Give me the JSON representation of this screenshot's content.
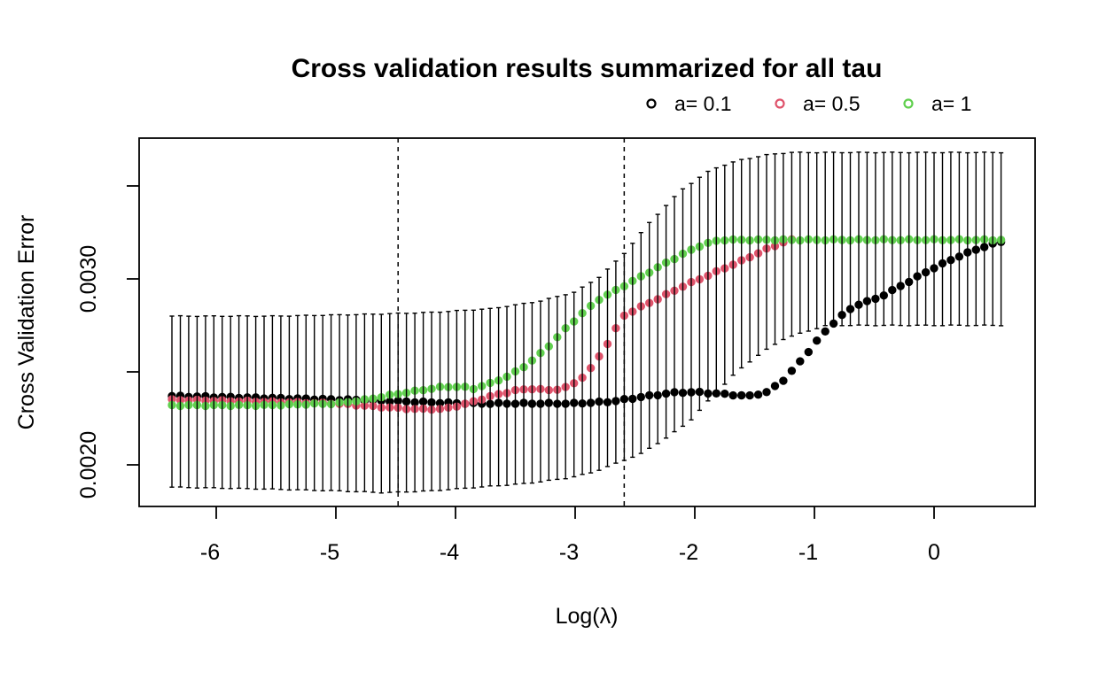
{
  "chart_data": {
    "type": "scatter",
    "title": "Cross validation results summarized for all tau",
    "xlabel": "Log(λ)",
    "ylabel": "Cross Validation Error",
    "background": "#ffffff",
    "foreground": "#000000",
    "x_axis": {
      "ticks": [
        -6,
        -5,
        -4,
        -3,
        -2,
        -1,
        0
      ],
      "tick_labels": [
        "-6",
        "-5",
        "-4",
        "-3",
        "-2",
        "-1",
        "0"
      ],
      "range": [
        -6.64,
        0.84
      ]
    },
    "y_axis": {
      "ticks": [
        0.002,
        0.0025,
        0.003,
        0.0035
      ],
      "labeled_ticks": [
        0.003,
        0.002
      ],
      "tick_labels": [
        "0.0030",
        "0.0020"
      ],
      "range": [
        0.001776,
        0.003757
      ]
    },
    "vlines": {
      "style": "dashed",
      "x": [
        -4.48,
        -2.59
      ]
    },
    "points": {
      "n": 100,
      "x_start": -6.37,
      "x_step": 0.07
    },
    "series": [
      {
        "label": "a= 0.1",
        "color": "#000000",
        "x_end": 0.56,
        "keypoints": [
          [
            -6.37,
            0.00237
          ],
          [
            -5.6,
            0.00236
          ],
          [
            -4.9,
            0.00235
          ],
          [
            -4.4,
            0.00234
          ],
          [
            -3.9,
            0.00233
          ],
          [
            -3.4,
            0.00233
          ],
          [
            -3.0,
            0.00233
          ],
          [
            -2.7,
            0.00234
          ],
          [
            -2.4,
            0.00237
          ],
          [
            -2.15,
            0.00239
          ],
          [
            -1.95,
            0.00239
          ],
          [
            -1.75,
            0.00238
          ],
          [
            -1.55,
            0.00237
          ],
          [
            -1.4,
            0.00239
          ],
          [
            -1.25,
            0.00246
          ],
          [
            -1.1,
            0.00257
          ],
          [
            -0.95,
            0.00269
          ],
          [
            -0.8,
            0.00279
          ],
          [
            -0.65,
            0.00286
          ],
          [
            -0.5,
            0.00289
          ],
          [
            -0.4,
            0.00292
          ],
          [
            -0.2,
            0.00299
          ],
          [
            0.0,
            0.00306
          ],
          [
            0.2,
            0.00312
          ],
          [
            0.4,
            0.00317
          ],
          [
            0.56,
            0.0032
          ]
        ]
      },
      {
        "label": "a= 0.5",
        "color": "#DF536B",
        "x_end": -1.19,
        "keypoints": [
          [
            -6.37,
            0.00235
          ],
          [
            -5.6,
            0.00234
          ],
          [
            -5.0,
            0.00233
          ],
          [
            -4.6,
            0.00231
          ],
          [
            -4.35,
            0.0023
          ],
          [
            -4.1,
            0.0023
          ],
          [
            -3.9,
            0.00233
          ],
          [
            -3.7,
            0.00237
          ],
          [
            -3.5,
            0.0024
          ],
          [
            -3.35,
            0.00241
          ],
          [
            -3.2,
            0.0024
          ],
          [
            -3.05,
            0.00242
          ],
          [
            -2.9,
            0.00249
          ],
          [
            -2.75,
            0.00263
          ],
          [
            -2.6,
            0.0028
          ],
          [
            -2.45,
            0.00285
          ],
          [
            -2.35,
            0.00288
          ],
          [
            -2.1,
            0.00296
          ],
          [
            -1.85,
            0.00303
          ],
          [
            -1.6,
            0.0031
          ],
          [
            -1.4,
            0.00316
          ],
          [
            -1.25,
            0.0032
          ],
          [
            -1.19,
            0.00321
          ]
        ]
      },
      {
        "label": "a= 1",
        "color": "#61D04F",
        "x_end": 0.56,
        "keypoints": [
          [
            -6.37,
            0.00232
          ],
          [
            -5.6,
            0.00232
          ],
          [
            -5.0,
            0.00233
          ],
          [
            -4.75,
            0.00235
          ],
          [
            -4.5,
            0.00238
          ],
          [
            -4.3,
            0.0024
          ],
          [
            -4.1,
            0.00242
          ],
          [
            -3.95,
            0.00242
          ],
          [
            -3.85,
            0.00241
          ],
          [
            -3.7,
            0.00244
          ],
          [
            -3.55,
            0.00248
          ],
          [
            -3.4,
            0.00254
          ],
          [
            -3.25,
            0.00262
          ],
          [
            -3.1,
            0.00272
          ],
          [
            -2.95,
            0.00281
          ],
          [
            -2.8,
            0.00289
          ],
          [
            -2.6,
            0.00296
          ],
          [
            -2.4,
            0.00303
          ],
          [
            -2.2,
            0.0031
          ],
          [
            -2.05,
            0.00315
          ],
          [
            -1.95,
            0.00318
          ],
          [
            -1.85,
            0.0032
          ],
          [
            -1.78,
            0.00321
          ],
          [
            0.56,
            0.00321
          ]
        ]
      }
    ],
    "error_bars": {
      "color": "#000000",
      "attached_to": "all points",
      "upper_keypoints": [
        [
          -6.37,
          0.0028
        ],
        [
          -5.5,
          0.0028
        ],
        [
          -4.7,
          0.00281
        ],
        [
          -4.2,
          0.00282
        ],
        [
          -3.7,
          0.00284
        ],
        [
          -3.3,
          0.00288
        ],
        [
          -3.0,
          0.00293
        ],
        [
          -2.8,
          0.00301
        ],
        [
          -2.6,
          0.00313
        ],
        [
          -2.37,
          0.00331
        ],
        [
          -2.11,
          0.00348
        ],
        [
          -1.86,
          0.00359
        ],
        [
          -1.62,
          0.00364
        ],
        [
          -1.37,
          0.00367
        ],
        [
          -1.2,
          0.00368
        ],
        [
          0.56,
          0.00368
        ]
      ],
      "lower_keypoints": [
        [
          -6.37,
          0.00188
        ],
        [
          -5.6,
          0.00187
        ],
        [
          -5.0,
          0.00186
        ],
        [
          -4.6,
          0.00185
        ],
        [
          -4.2,
          0.00186
        ],
        [
          -3.8,
          0.00188
        ],
        [
          -3.4,
          0.0019
        ],
        [
          -3.05,
          0.00193
        ],
        [
          -2.85,
          0.00196
        ],
        [
          -2.65,
          0.00201
        ],
        [
          -2.45,
          0.00206
        ],
        [
          -2.25,
          0.00214
        ],
        [
          -2.05,
          0.00223
        ],
        [
          -1.85,
          0.00237
        ],
        [
          -1.65,
          0.0025
        ],
        [
          -1.45,
          0.0026
        ],
        [
          -1.25,
          0.00268
        ],
        [
          -1.05,
          0.00272
        ],
        [
          -0.9,
          0.00275
        ],
        [
          0.56,
          0.00275
        ]
      ]
    },
    "legend": {
      "position": "top-right",
      "marker": "open-circle"
    }
  }
}
